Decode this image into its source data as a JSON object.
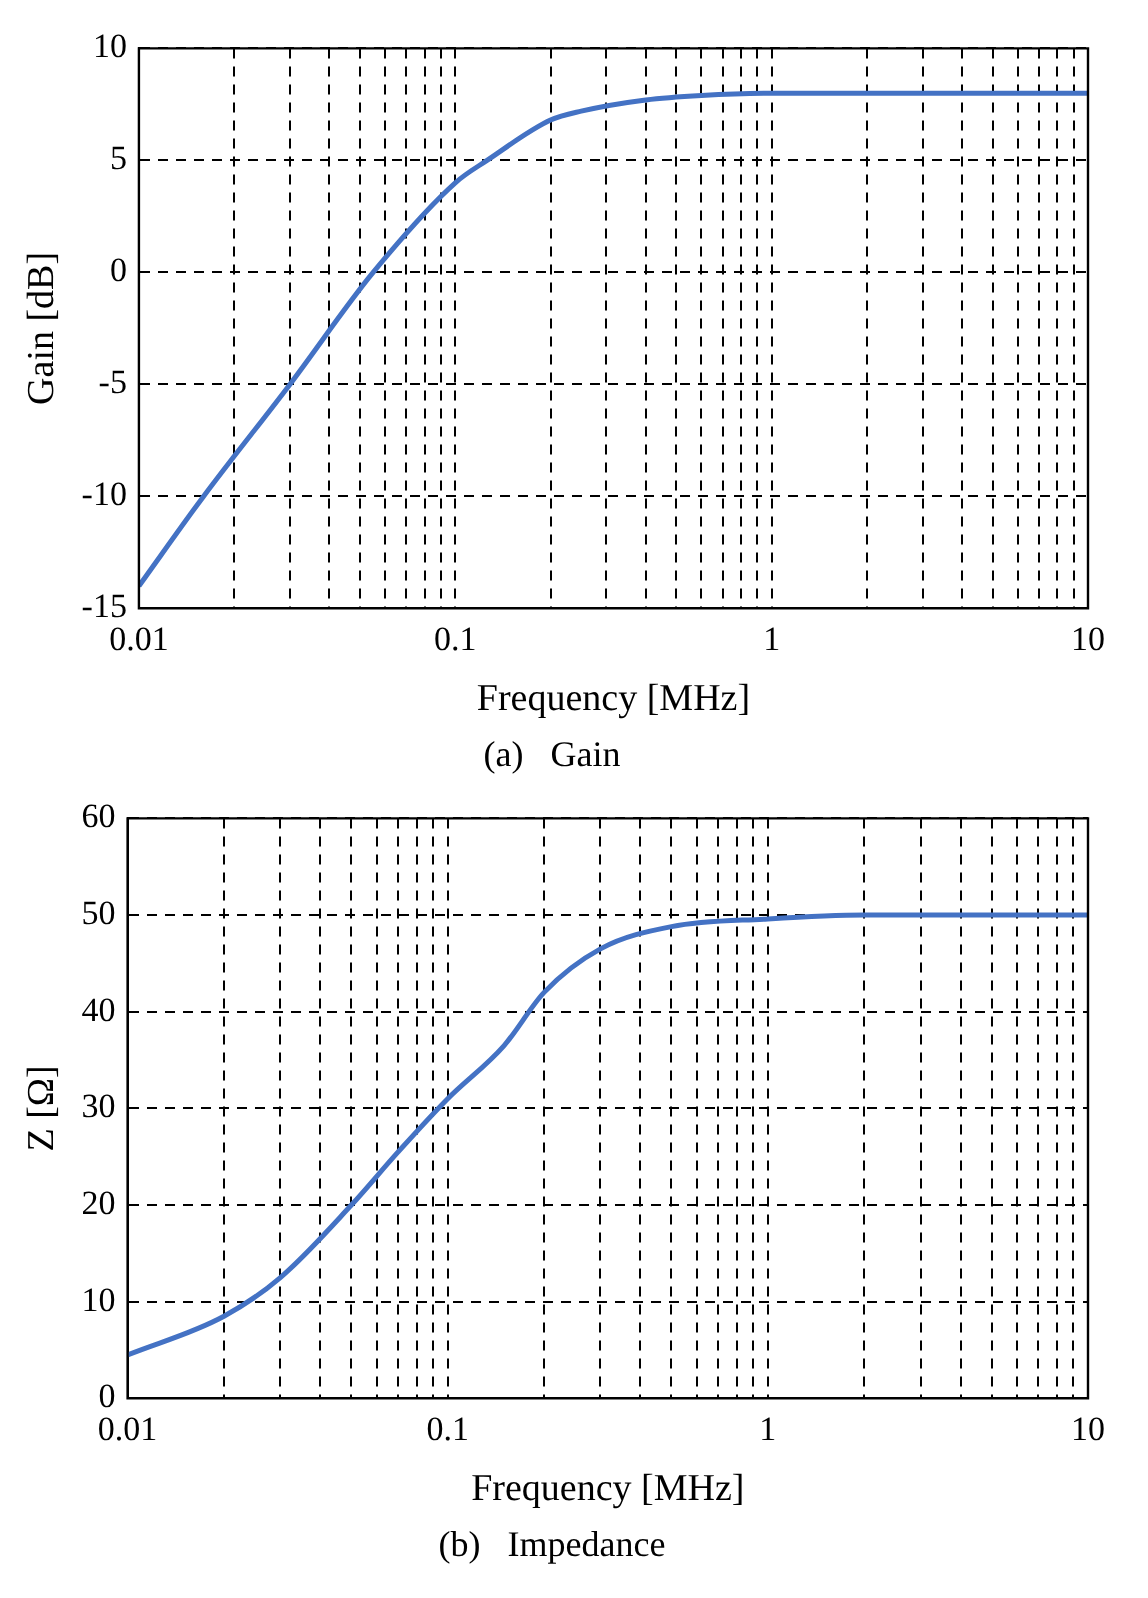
{
  "chart_data": [
    {
      "type": "line",
      "title": "(a)   Gain",
      "xlabel": "Frequency [MHz]",
      "ylabel": "Gain [dB]",
      "log": "x",
      "grid": true,
      "marker": "none",
      "line_style": "solid",
      "x": [
        0.01,
        0.016,
        0.03,
        0.055,
        0.1,
        0.126,
        0.2,
        0.25,
        0.4,
        0.6,
        1,
        10
      ],
      "series": [
        {
          "color": "#4472c4",
          "values": [
            -14,
            -10,
            -5,
            0,
            4,
            5,
            6.8,
            7.2,
            7.7,
            7.9,
            8,
            8
          ]
        }
      ],
      "xlim": [
        0.01,
        10
      ],
      "ylim": [
        -15,
        10
      ],
      "yticks": [
        -15,
        -10,
        -5,
        0,
        5,
        10
      ],
      "xticks": [
        0.01,
        {
          "value": 0.02,
          "label": null
        },
        {
          "value": 0.03,
          "label": null
        },
        {
          "value": 0.04,
          "label": null
        },
        {
          "value": 0.05,
          "label": null
        },
        {
          "value": 0.06,
          "label": null
        },
        {
          "value": 0.07,
          "label": null
        },
        {
          "value": 0.08,
          "label": null
        },
        {
          "value": 0.09,
          "label": null
        },
        0.1,
        {
          "value": 0.2,
          "label": null
        },
        {
          "value": 0.3,
          "label": null
        },
        {
          "value": 0.4,
          "label": null
        },
        {
          "value": 0.5,
          "label": null
        },
        {
          "value": 0.6,
          "label": null
        },
        {
          "value": 0.7,
          "label": null
        },
        {
          "value": 0.8,
          "label": null
        },
        {
          "value": 0.9,
          "label": null
        },
        1,
        {
          "value": 2,
          "label": null
        },
        {
          "value": 3,
          "label": null
        },
        {
          "value": 4,
          "label": null
        },
        {
          "value": 5,
          "label": null
        },
        {
          "value": 6,
          "label": null
        },
        {
          "value": 7,
          "label": null
        },
        {
          "value": 8,
          "label": null
        },
        {
          "value": 9,
          "label": null
        },
        10
      ]
    },
    {
      "type": "line",
      "title": "(b)   Impedance",
      "xlabel": "Frequency [MHz]",
      "ylabel": "Z [Ω]",
      "log": "x",
      "grid": true,
      "marker": "none",
      "line_style": "solid",
      "x": [
        0.01,
        0.02,
        0.03,
        0.05,
        0.07,
        0.1,
        0.15,
        0.2,
        0.3,
        0.5,
        1,
        2,
        10
      ],
      "series": [
        {
          "color": "#4472c4",
          "values": [
            4.5,
            8.5,
            12.5,
            20,
            25.5,
            31,
            36.5,
            42,
            46.5,
            48.8,
            49.6,
            50,
            50
          ]
        }
      ],
      "xlim": [
        0.01,
        10
      ],
      "ylim": [
        0,
        60
      ],
      "yticks": [
        0,
        10,
        20,
        30,
        40,
        50,
        60
      ],
      "xticks": [
        0.01,
        {
          "value": 0.02,
          "label": null
        },
        {
          "value": 0.03,
          "label": null
        },
        {
          "value": 0.04,
          "label": null
        },
        {
          "value": 0.05,
          "label": null
        },
        {
          "value": 0.06,
          "label": null
        },
        {
          "value": 0.07,
          "label": null
        },
        {
          "value": 0.08,
          "label": null
        },
        {
          "value": 0.09,
          "label": null
        },
        0.1,
        {
          "value": 0.2,
          "label": null
        },
        {
          "value": 0.3,
          "label": null
        },
        {
          "value": 0.4,
          "label": null
        },
        {
          "value": 0.5,
          "label": null
        },
        {
          "value": 0.6,
          "label": null
        },
        {
          "value": 0.7,
          "label": null
        },
        {
          "value": 0.8,
          "label": null
        },
        {
          "value": 0.9,
          "label": null
        },
        1,
        {
          "value": 2,
          "label": null
        },
        {
          "value": 3,
          "label": null
        },
        {
          "value": 4,
          "label": null
        },
        {
          "value": 5,
          "label": null
        },
        {
          "value": 6,
          "label": null
        },
        {
          "value": 7,
          "label": null
        },
        {
          "value": 8,
          "label": null
        },
        {
          "value": 9,
          "label": null
        },
        10
      ]
    }
  ]
}
